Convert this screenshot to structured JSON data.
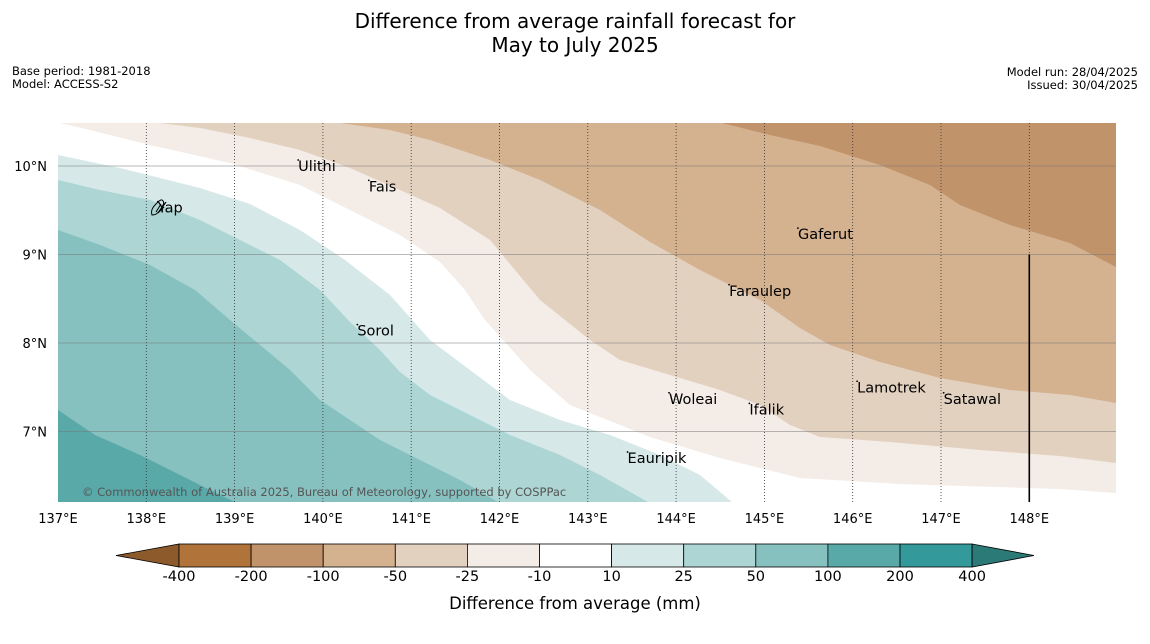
{
  "title": {
    "line1": "Difference from average rainfall forecast for",
    "line2": "May to July 2025"
  },
  "meta_left": {
    "base_period": "Base period: 1981-2018",
    "model": "Model: ACCESS-S2"
  },
  "meta_right": {
    "model_run": "Model run: 28/04/2025",
    "issued": "Issued: 30/04/2025"
  },
  "copyright": "© Commonwealth of Australia 2025, Bureau of Meteorology, supported by COSPPac",
  "map": {
    "lon_range": [
      137,
      149
    ],
    "lat_range": [
      6.3,
      10.5
    ],
    "lon_ticks": [
      {
        "value": 137,
        "label": "137°E"
      },
      {
        "value": 138,
        "label": "138°E"
      },
      {
        "value": 139,
        "label": "139°E"
      },
      {
        "value": 140,
        "label": "140°E"
      },
      {
        "value": 141,
        "label": "141°E"
      },
      {
        "value": 142,
        "label": "142°E"
      },
      {
        "value": 143,
        "label": "143°E"
      },
      {
        "value": 144,
        "label": "144°E"
      },
      {
        "value": 145,
        "label": "145°E"
      },
      {
        "value": 146,
        "label": "146°E"
      },
      {
        "value": 147,
        "label": "147°E"
      },
      {
        "value": 148,
        "label": "148°E"
      }
    ],
    "lat_ticks": [
      {
        "value": 10,
        "label": "10°N"
      },
      {
        "value": 9,
        "label": "9°N"
      },
      {
        "value": 8,
        "label": "8°N"
      },
      {
        "value": 7,
        "label": "7°N"
      }
    ],
    "boundary_line": {
      "lon": 148.0,
      "lat_top": 9.0
    },
    "places": [
      {
        "name": "Ulithi",
        "lon": 139.72,
        "lat": 10.0
      },
      {
        "name": "Fais",
        "lon": 140.52,
        "lat": 9.77
      },
      {
        "name": "Yap",
        "lon": 138.13,
        "lat": 9.53
      },
      {
        "name": "Gaferut",
        "lon": 145.38,
        "lat": 9.23
      },
      {
        "name": "Faraulep",
        "lon": 144.6,
        "lat": 8.59
      },
      {
        "name": "Sorol",
        "lon": 140.39,
        "lat": 8.14
      },
      {
        "name": "Lamotrek",
        "lon": 146.05,
        "lat": 7.5
      },
      {
        "name": "Woleai",
        "lon": 143.92,
        "lat": 7.37
      },
      {
        "name": "Ifalik",
        "lon": 144.83,
        "lat": 7.25
      },
      {
        "name": "Satawal",
        "lon": 147.03,
        "lat": 7.37
      },
      {
        "name": "Eauripik",
        "lon": 143.45,
        "lat": 6.7
      }
    ]
  },
  "colorbar": {
    "title": "Difference from average (mm)",
    "ticks": [
      "-400",
      "-200",
      "-100",
      "-50",
      "-25",
      "-10",
      "10",
      "25",
      "50",
      "100",
      "200",
      "400"
    ],
    "under_color": "#8c5a2b",
    "over_color": "#2c7a78",
    "colors": [
      "#b0733a",
      "#c1936a",
      "#d4b18f",
      "#e3d1c0",
      "#f4ece6",
      "#ffffff",
      "#d6e9e8",
      "#acd5d4",
      "#86c1c0",
      "#58a9a8",
      "#33999a"
    ]
  }
}
